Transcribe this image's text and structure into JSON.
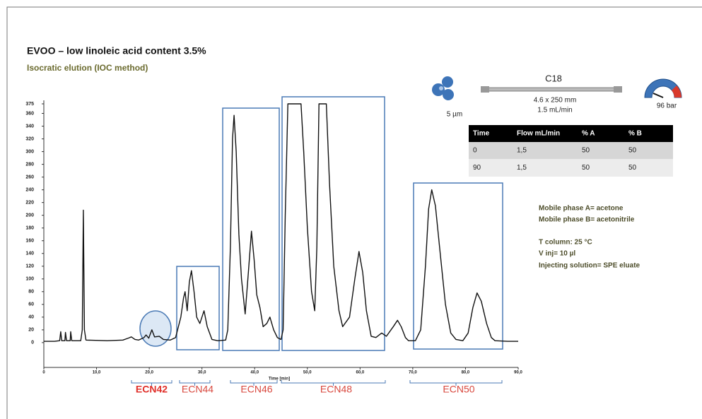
{
  "chart_data": {
    "type": "line",
    "title": "EVOO – low linoleic acid content 3.5%",
    "subtitle": "Isocratic elution (IOC method)",
    "x_label": "Time [min]",
    "color": "#111111",
    "x": [
      0,
      2,
      3,
      3.2,
      3.4,
      4,
      4.1,
      4.3,
      5,
      5.1,
      5.3,
      7,
      7.3,
      7.5,
      7.7,
      8,
      12,
      15,
      16,
      16.6,
      17.3,
      18,
      19,
      19.4,
      19.9,
      20.5,
      21,
      21.9,
      22.7,
      24,
      25,
      26,
      26.5,
      26.8,
      27.2,
      27.6,
      28,
      28.5,
      29,
      29.6,
      30.4,
      31,
      31.9,
      33,
      34.5,
      34.9,
      35.4,
      35.8,
      36.1,
      36.5,
      37,
      37.5,
      38.2,
      38.8,
      39.4,
      39.9,
      40.4,
      41,
      41.6,
      42.3,
      42.9,
      43.6,
      44.3,
      45,
      45.4,
      45.8,
      46.3,
      48.8,
      49.3,
      50,
      50.8,
      51.4,
      51.8,
      52.2,
      53.6,
      54.2,
      55,
      56,
      56.7,
      58,
      59,
      59.8,
      60.5,
      61.2,
      62.1,
      63,
      64.1,
      65,
      66.3,
      67.1,
      67.8,
      68.6,
      69.2,
      70.5,
      71.5,
      72.4,
      73,
      73.6,
      74.3,
      75.2,
      76.2,
      77.2,
      78.2,
      79.5,
      80.5,
      81.4,
      82.2,
      83,
      84,
      84.9,
      85.6,
      88,
      90
    ],
    "values": [
      2,
      2,
      3,
      17,
      3,
      3,
      16,
      3,
      3,
      17,
      3,
      3,
      20,
      208,
      20,
      4,
      3,
      4,
      7,
      9,
      5,
      4,
      8,
      12,
      7,
      20,
      9,
      10,
      5,
      4,
      8,
      40,
      70,
      80,
      50,
      95,
      113,
      80,
      40,
      30,
      50,
      25,
      5,
      3,
      4,
      20,
      150,
      320,
      357,
      300,
      170,
      100,
      45,
      110,
      175,
      130,
      75,
      55,
      25,
      30,
      40,
      20,
      8,
      5,
      20,
      200,
      375,
      375,
      300,
      180,
      80,
      50,
      150,
      375,
      375,
      250,
      120,
      50,
      25,
      40,
      100,
      143,
      110,
      50,
      10,
      8,
      15,
      10,
      25,
      35,
      25,
      8,
      3,
      3,
      20,
      120,
      210,
      240,
      215,
      140,
      60,
      15,
      5,
      3,
      15,
      55,
      78,
      65,
      30,
      8,
      3,
      2,
      2
    ],
    "xlim": [
      0,
      90
    ],
    "xticks": [
      0,
      {
        "value": 10,
        "label": "10,0"
      },
      {
        "value": 20,
        "label": "20,0"
      },
      {
        "value": 30,
        "label": "30,0"
      },
      {
        "value": 40,
        "label": "40,0"
      },
      {
        "value": 50,
        "label": "50,0"
      },
      {
        "value": 60,
        "label": "60,0"
      },
      {
        "value": 70,
        "label": "70,0"
      },
      {
        "value": 80,
        "label": "80,0"
      },
      {
        "value": 90,
        "label": "90,0"
      }
    ],
    "ylim": [
      -39,
      375
    ],
    "yticks": [
      0,
      20,
      40,
      60,
      80,
      100,
      120,
      140,
      160,
      180,
      200,
      220,
      240,
      260,
      280,
      300,
      320,
      340,
      360,
      375
    ],
    "groups": [
      "ECN42",
      "ECN44",
      "ECN46",
      "ECN48",
      "ECN50"
    ]
  },
  "column": {
    "particle": "5 µm",
    "name": "C18",
    "dimensions": "4.6 x 250 mm",
    "flow": "1.5 mL/min",
    "pressure": "96 bar"
  },
  "table": {
    "header": [
      "Time",
      "Flow mL/min",
      "% A",
      "% B"
    ],
    "rows": [
      [
        "0",
        "1,5",
        "50",
        "50"
      ],
      [
        "90",
        "1,5",
        "50",
        "50"
      ]
    ]
  },
  "conditions": [
    "Mobile phase A= acetone",
    "Mobile phase B= acetonitrile",
    "T column: 25 °C",
    "V inj= 10 µl",
    "Injecting solution= SPE eluate"
  ]
}
